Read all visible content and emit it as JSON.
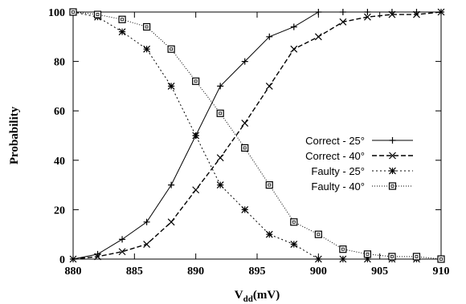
{
  "chart_data": {
    "type": "line",
    "title": "",
    "xlabel": {
      "main": "V",
      "sub": "dd",
      "suffix": "(mV)"
    },
    "ylabel": "Probability",
    "xlim": [
      880,
      910
    ],
    "ylim": [
      0,
      100
    ],
    "xticks": [
      880,
      885,
      890,
      895,
      900,
      905,
      910
    ],
    "yticks": [
      0,
      20,
      40,
      60,
      80,
      100
    ],
    "grid": false,
    "legend_position": "center-right",
    "series": [
      {
        "name": "Correct - 25°",
        "line": "solid",
        "marker": "plus",
        "x": [
          880,
          882,
          884,
          886,
          888,
          890,
          892,
          894,
          896,
          898,
          900,
          902,
          904,
          906,
          908,
          910
        ],
        "y": [
          0,
          2,
          8,
          15,
          30,
          50,
          70,
          80,
          90,
          94,
          100,
          100,
          100,
          100,
          100,
          100
        ]
      },
      {
        "name": "Correct - 40°",
        "line": "dashed",
        "marker": "cross",
        "x": [
          880,
          882,
          884,
          886,
          888,
          890,
          892,
          894,
          896,
          898,
          900,
          902,
          904,
          906,
          908,
          910
        ],
        "y": [
          0,
          1,
          3,
          6,
          15,
          28,
          41,
          55,
          70,
          85,
          90,
          96,
          98,
          99,
          99,
          100
        ]
      },
      {
        "name": "Faulty - 25°",
        "line": "dotted",
        "marker": "star",
        "x": [
          880,
          882,
          884,
          886,
          888,
          890,
          892,
          894,
          896,
          898,
          900,
          902,
          904,
          906,
          908,
          910
        ],
        "y": [
          100,
          98,
          92,
          85,
          70,
          50,
          30,
          20,
          10,
          6,
          0,
          0,
          0,
          0,
          0,
          0
        ]
      },
      {
        "name": "Faulty - 40°",
        "line": "finedotted",
        "marker": "box",
        "x": [
          880,
          882,
          884,
          886,
          888,
          890,
          892,
          894,
          896,
          898,
          900,
          902,
          904,
          906,
          908,
          910
        ],
        "y": [
          100,
          99,
          97,
          94,
          85,
          72,
          59,
          45,
          30,
          15,
          10,
          4,
          2,
          1,
          1,
          0
        ]
      }
    ]
  }
}
